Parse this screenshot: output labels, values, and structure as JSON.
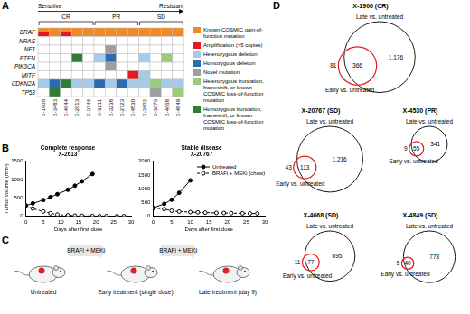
{
  "A": {
    "panel_label": "A",
    "sensitive_label": "Sensitive",
    "resistant_label": "Resistant",
    "samples": [
      "X-1906",
      "X-3483",
      "X-4644",
      "X-2613",
      "X-3746",
      "X-3211",
      "X-3238",
      "X-2723",
      "X-4530",
      "X-2602",
      "X-3676",
      "X-4668",
      "X-4849"
    ],
    "groups": [
      {
        "name": "CR",
        "samples": [
          "X-1906",
          "X-3483",
          "X-4644",
          "X-2613",
          "X-3746"
        ]
      },
      {
        "name": "PR",
        "samples": [
          "X-3211",
          "X-3238",
          "X-2723",
          "X-4530"
        ]
      },
      {
        "name": "SD",
        "samples": [
          "X-2602",
          "X-3676",
          "X-4668",
          "X-4849"
        ]
      }
    ],
    "genes": [
      {
        "name": "BRAF",
        "colors": [
          [
            "#f08a24",
            "#e41a1c"
          ],
          "#f08a24",
          [
            "#f08a24",
            "#e41a1c"
          ],
          "#f08a24",
          "#f08a24",
          "#f08a24",
          "#f08a24",
          "#f08a24",
          "#f08a24",
          "#f08a24",
          "#f08a24",
          "#f08a24",
          "#f08a24"
        ]
      },
      {
        "name": "NRAS",
        "colors": [
          null,
          null,
          null,
          null,
          null,
          null,
          null,
          null,
          null,
          null,
          null,
          null,
          null
        ]
      },
      {
        "name": "NF1",
        "colors": [
          null,
          null,
          null,
          null,
          null,
          null,
          "#9e9e9e",
          null,
          null,
          null,
          null,
          null,
          null
        ]
      },
      {
        "name": "PTEN",
        "colors": [
          null,
          null,
          null,
          "#2e7d32",
          null,
          "#a6cbe8",
          "#2b6cb0",
          null,
          null,
          "#a6cbe8",
          null,
          "#9ccc7a",
          null
        ]
      },
      {
        "name": "PIK3CA",
        "colors": [
          null,
          null,
          null,
          null,
          null,
          null,
          "#9e9e9e",
          null,
          null,
          null,
          null,
          null,
          null
        ]
      },
      {
        "name": "MITF",
        "colors": [
          null,
          null,
          null,
          null,
          null,
          null,
          null,
          null,
          "#e41a1c",
          "#a6cbe8",
          null,
          null,
          null
        ]
      },
      {
        "name": "CDKN2A",
        "colors": [
          "#a6cbe8",
          "#2b6cb0",
          "#2e7d32",
          "#a6cbe8",
          "#a6cbe8",
          "#2b6cb0",
          "#a6cbe8",
          "#2b6cb0",
          "#a6cbe8",
          "#a6cbe8",
          "#9ccc7a",
          "#a6cbe8",
          "#a6cbe8"
        ]
      },
      {
        "name": "TP53",
        "colors": [
          null,
          "#2e7d32",
          null,
          null,
          null,
          null,
          null,
          null,
          null,
          null,
          "#9e9e9e",
          null,
          "#9ccc7a"
        ]
      }
    ],
    "legend": [
      {
        "label": "Known COSMIC gain-of-function mutation",
        "color": "#f08a24"
      },
      {
        "label": "Amplification (>5 copies)",
        "color": "#e41a1c"
      },
      {
        "label": "Heterozygous deletion",
        "color": "#a6cbe8"
      },
      {
        "label": "Homozygous deletion",
        "color": "#2b6cb0"
      },
      {
        "label": "Novel mutation",
        "color": "#9e9e9e"
      },
      {
        "label": "Heterozygous truncation, frameshift, or known COSMIC loss-of-function mutation",
        "color": "#9ccc7a"
      },
      {
        "label": "Homozygous truncation, frameshift, or known COSMIC loss-of-function mutation",
        "color": "#2e7d32"
      }
    ]
  },
  "B": {
    "panel_label": "B"
  },
  "chart_data": [
    {
      "type": "line",
      "title": "Complete response",
      "subtitle": "X-2613",
      "x_label": "Days after first dose",
      "y_label": "Tumor volume (mm³)",
      "xlim": [
        0,
        30
      ],
      "xticks": [
        0,
        5,
        10,
        15,
        20,
        25,
        30
      ],
      "ylim": [
        0,
        1500
      ],
      "yticks": [
        0,
        500,
        1000,
        1500
      ],
      "grid": false,
      "series": [
        {
          "name": "Untreated",
          "color": "#000000",
          "marker": "circle",
          "line_style": "solid",
          "x": [
            0,
            2,
            5,
            7,
            9,
            12,
            14,
            16,
            19
          ],
          "values": [
            290,
            350,
            440,
            520,
            600,
            720,
            830,
            950,
            1150
          ]
        },
        {
          "name": "BRAFi + MEKi (chow)",
          "color": "#000000",
          "marker": "circle_open",
          "line_style": "dashed",
          "x": [
            0,
            2,
            5,
            7,
            9,
            12,
            14,
            16,
            19,
            21,
            23,
            26,
            28
          ],
          "values": [
            290,
            210,
            130,
            80,
            45,
            25,
            15,
            10,
            5,
            3,
            2,
            1,
            1
          ]
        }
      ]
    },
    {
      "type": "line",
      "title": "Stable disease",
      "subtitle": "X-20767",
      "x_label": "Days after first dose",
      "xlim": [
        0,
        30
      ],
      "xticks": [
        0,
        5,
        10,
        15,
        20,
        25,
        30
      ],
      "ylim": [
        0,
        2000
      ],
      "yticks": [
        0,
        500,
        1000,
        1500,
        2000
      ],
      "grid": false,
      "legend": "upper right",
      "series": [
        {
          "name": "Untreated",
          "color": "#000000",
          "marker": "circle",
          "line_style": "solid",
          "x": [
            0,
            3,
            5,
            7,
            10
          ],
          "values": [
            300,
            450,
            600,
            850,
            1300
          ]
        },
        {
          "name": "BRAFi + MEKi (chow)",
          "color": "#000000",
          "marker": "circle_open",
          "line_style": "dashed",
          "x": [
            0,
            3,
            5,
            7,
            10,
            12,
            14,
            17,
            19,
            21,
            24,
            26,
            28
          ],
          "values": [
            300,
            260,
            200,
            170,
            150,
            140,
            130,
            120,
            115,
            110,
            105,
            100,
            100
          ]
        }
      ]
    }
  ],
  "C": {
    "panel_label": "C",
    "stages": [
      "Untreated",
      "Early treatment (single dose)",
      "Late treatment (day 9)"
    ],
    "arrows": [
      "BRAFi + MEKi",
      "BRAFi + MEKi"
    ]
  },
  "D": {
    "panel_label": "D",
    "venns": [
      {
        "title": "X-1906 (CR)",
        "late_label": "Late vs. untreated",
        "early_label": "Early vs. untreated",
        "only_early": 81,
        "both": 366,
        "only_late": {
          "value": 1176,
          "label": "1,176"
        }
      },
      {
        "title": "X-20767 (SD)",
        "late_label": "Late vs. untreated",
        "early_label": "Early vs. untreated",
        "only_early": 43,
        "both": 113,
        "only_late": {
          "value": 1216,
          "label": "1,216"
        }
      },
      {
        "title": "X-4530 (PR)",
        "late_label": "Late vs. untreated",
        "early_label": "Early vs. untreated",
        "only_early": 9,
        "both": 55,
        "only_late": 341
      },
      {
        "title": "X-4668 (SD)",
        "late_label": "Late vs. untreated",
        "early_label": "Early vs. untreated",
        "only_early": 11,
        "both": 77,
        "only_late": 695
      },
      {
        "title": "X-4849 (SD)",
        "late_label": "Late vs. untreated",
        "early_label": "Early vs. untreated",
        "only_early": 5,
        "both": 40,
        "only_late": 778
      }
    ]
  }
}
